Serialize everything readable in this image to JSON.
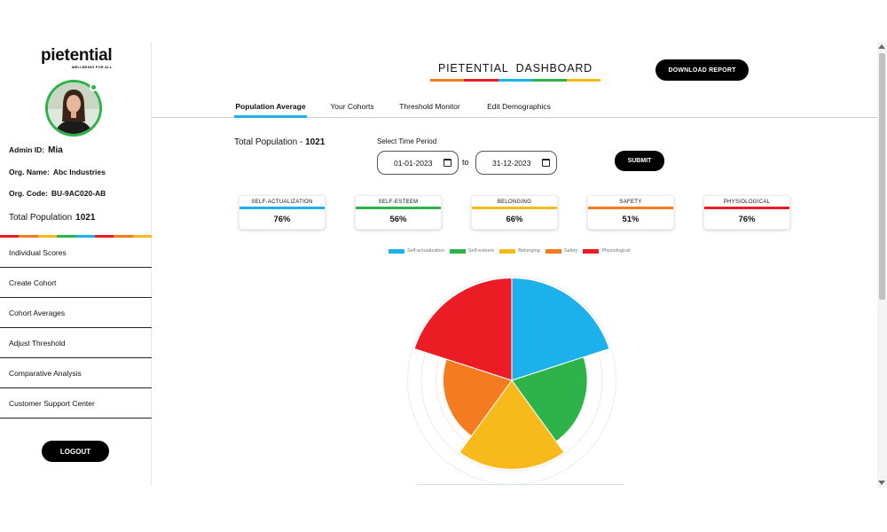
{
  "brand": {
    "logo_text": "pietential",
    "tagline": "WELLBEING FOR ALL"
  },
  "colors": {
    "self_actualization": "#1db1ec",
    "self_esteem": "#2db34a",
    "belonging": "#f8b91a",
    "safety": "#f47b20",
    "physiological": "#ec1c24"
  },
  "admin": {
    "id_label": "Admin ID:",
    "id_value": "Mia",
    "org_name_label": "Org. Name:",
    "org_name_value": "Abc Industries",
    "org_code_label": "Org. Code:",
    "org_code_value": "BU-9AC020-AB",
    "total_population_label": "Total Population",
    "total_population_value": "1021"
  },
  "nav": {
    "items": [
      {
        "label": "Individual Scores"
      },
      {
        "label": "Create Cohort"
      },
      {
        "label": "Cohort Averages"
      },
      {
        "label": "Adjust Threshold"
      },
      {
        "label": "Comparative Analysis"
      },
      {
        "label": "Customer Support Center"
      }
    ],
    "logout_label": "LOGOUT"
  },
  "header": {
    "title": "PIETENTIAL  DASHBOARD",
    "download_label": "DOWNLOAD REPORT"
  },
  "tabs": [
    {
      "label": "Population Average",
      "active": true
    },
    {
      "label": "Your Cohorts",
      "active": false
    },
    {
      "label": "Threshold Monitor",
      "active": false
    },
    {
      "label": "Edit Demographics",
      "active": false
    }
  ],
  "filters": {
    "total_population_label": "Total Population - ",
    "total_population_value": "1021",
    "period_label": "Select Time Period",
    "start_date": "01-01-2023",
    "to_label": "to",
    "end_date": "31-12-2023",
    "submit_label": "SUBMIT"
  },
  "stats": [
    {
      "name": "SELF-ACTUALIZATION",
      "value": "76%",
      "color": "#1db1ec"
    },
    {
      "name": "SELF-ESTEEM",
      "value": "56%",
      "color": "#2db34a"
    },
    {
      "name": "BELONGING",
      "value": "66%",
      "color": "#f8b91a"
    },
    {
      "name": "SAFETY",
      "value": "51%",
      "color": "#f47b20"
    },
    {
      "name": "PHYSIOLOGICAL",
      "value": "76%",
      "color": "#ec1c24"
    }
  ],
  "chart_data": {
    "type": "polar-area",
    "categories": [
      "Self-actualization",
      "Self-esteem",
      "Belonging",
      "Safety",
      "Physiological"
    ],
    "values": [
      76,
      56,
      66,
      51,
      76
    ],
    "colors": [
      "#1db1ec",
      "#2db34a",
      "#f8b91a",
      "#f47b20",
      "#ec1c24"
    ],
    "rmax": 100,
    "legend_position": "top",
    "grid": true
  }
}
